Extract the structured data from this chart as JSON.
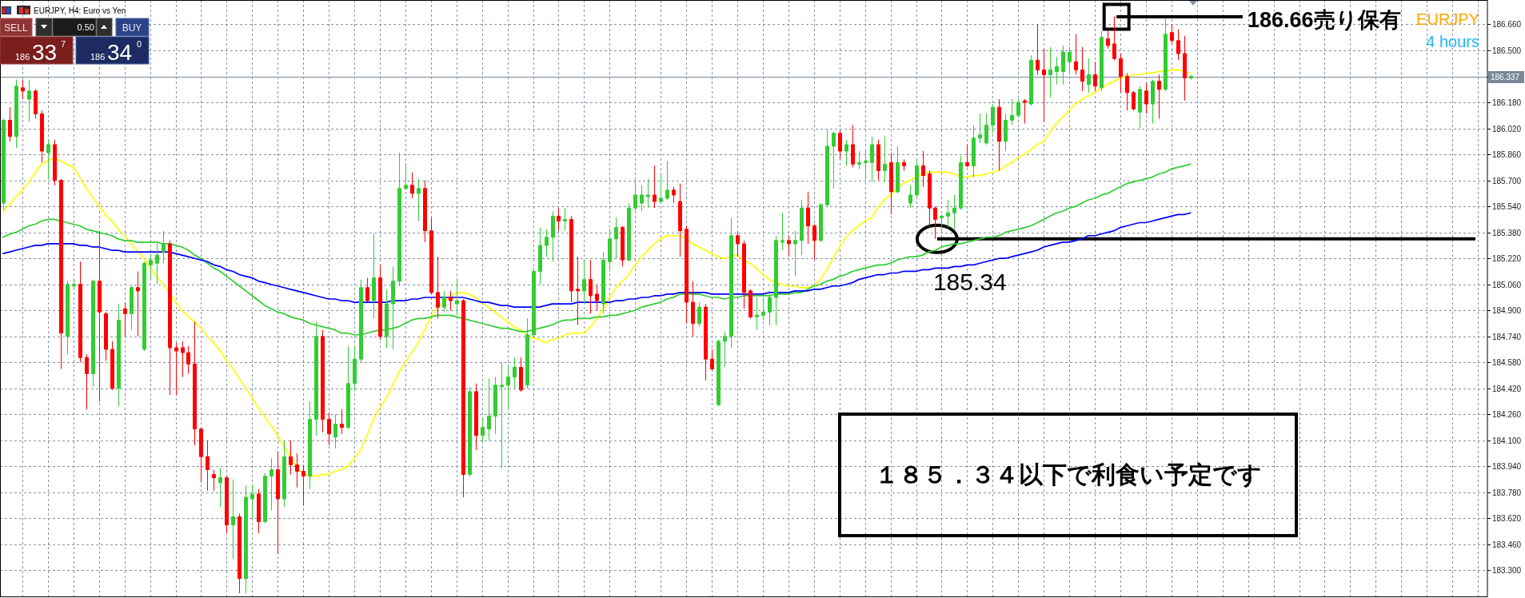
{
  "chart_data": {
    "type": "candlestick",
    "categories": [
      null,
      null,
      null,
      null,
      null,
      null,
      null,
      null,
      null,
      null,
      null,
      null,
      null,
      null,
      null,
      null,
      null,
      null,
      null,
      null,
      null,
      null,
      null,
      null,
      null,
      null,
      null,
      null,
      null,
      null,
      null,
      null,
      null,
      null,
      null,
      null,
      null,
      null,
      null,
      null,
      null,
      null,
      null,
      null,
      null,
      null,
      null,
      null,
      null,
      null,
      null,
      null,
      null,
      null,
      null,
      null,
      null,
      null,
      null,
      null,
      null,
      null,
      null,
      null,
      null,
      null,
      null,
      null,
      null,
      null,
      null,
      null,
      null,
      null,
      null,
      null,
      null,
      null,
      null,
      null,
      null,
      null,
      null,
      null,
      null,
      null,
      null,
      null,
      null,
      null,
      null,
      null,
      null,
      null,
      null,
      null,
      null,
      null,
      null,
      null,
      null,
      null,
      null,
      null,
      null,
      null,
      null,
      null,
      null,
      null,
      null,
      null,
      null,
      null,
      null,
      null,
      null,
      null,
      null,
      null,
      null,
      null,
      null,
      null,
      null,
      null,
      null,
      null,
      null,
      null,
      null,
      null,
      null,
      null,
      null,
      null,
      null,
      null,
      null,
      null,
      null,
      null,
      null,
      null,
      null,
      null,
      null,
      null,
      null,
      null,
      null,
      null,
      null,
      null,
      null,
      null,
      null,
      null,
      null,
      null,
      null,
      null,
      null,
      null,
      null,
      null,
      null,
      null,
      null,
      null,
      null,
      null,
      null,
      null,
      null,
      null,
      null,
      null,
      null,
      null,
      null,
      null,
      null,
      null,
      null,
      null,
      null,
      null,
      null,
      null,
      null,
      null,
      null,
      null,
      null,
      null,
      null,
      null,
      null,
      null,
      null,
      null,
      null,
      null,
      null,
      null,
      null,
      null,
      null,
      null,
      null,
      null,
      null,
      null,
      null,
      null,
      null,
      null,
      null,
      null,
      null,
      null,
      null,
      null,
      null,
      null,
      null,
      null,
      null,
      null,
      null,
      null,
      null
    ],
    "ohlc": [
      [
        185.56,
        186.08,
        185.52,
        186.07
      ],
      [
        186.07,
        186.15,
        185.94,
        185.97
      ],
      [
        185.97,
        186.32,
        185.9,
        186.28
      ],
      [
        186.27,
        186.32,
        186.2,
        186.25
      ],
      [
        186.2,
        186.32,
        186.06,
        186.25
      ],
      [
        186.25,
        186.26,
        186.08,
        186.11
      ],
      [
        186.11,
        186.13,
        185.81,
        185.88
      ],
      [
        185.87,
        185.95,
        185.71,
        185.92
      ],
      [
        185.92,
        185.95,
        185.67,
        185.7
      ],
      [
        185.7,
        185.71,
        184.54,
        184.76
      ],
      [
        184.74,
        185.08,
        184.63,
        185.06
      ],
      [
        185.05,
        185.09,
        185.03,
        185.06
      ],
      [
        185.06,
        185.2,
        184.58,
        184.61
      ],
      [
        184.61,
        184.63,
        184.29,
        184.51
      ],
      [
        184.51,
        185.09,
        184.43,
        185.08
      ],
      [
        185.08,
        185.38,
        184.34,
        184.89
      ],
      [
        184.88,
        184.89,
        184.59,
        184.66
      ],
      [
        184.66,
        184.71,
        184.41,
        184.42
      ],
      [
        184.42,
        184.94,
        184.31,
        184.84
      ],
      [
        184.91,
        184.95,
        184.74,
        184.88
      ],
      [
        184.88,
        185.05,
        184.78,
        185.04
      ],
      [
        185.04,
        185.14,
        184.74,
        185.02
      ],
      [
        184.66,
        185.2,
        184.65,
        185.19
      ],
      [
        185.18,
        185.25,
        185.09,
        185.21
      ],
      [
        185.19,
        185.31,
        185.06,
        185.24
      ],
      [
        185.26,
        185.39,
        185.19,
        185.31
      ],
      [
        185.31,
        185.33,
        184.38,
        184.67
      ],
      [
        184.67,
        184.7,
        184.38,
        184.65
      ],
      [
        184.67,
        184.71,
        184.49,
        184.64
      ],
      [
        184.64,
        184.68,
        184.51,
        184.57
      ],
      [
        184.57,
        184.83,
        184.07,
        184.17
      ],
      [
        184.17,
        184.18,
        183.84,
        184.0
      ],
      [
        184.0,
        184.1,
        183.79,
        183.92
      ],
      [
        183.89,
        183.92,
        183.79,
        183.87
      ],
      [
        183.84,
        183.93,
        183.69,
        183.87
      ],
      [
        183.87,
        183.88,
        183.53,
        183.58
      ],
      [
        183.58,
        183.86,
        183.37,
        183.63
      ],
      [
        183.63,
        183.65,
        183.16,
        183.25
      ],
      [
        183.25,
        183.82,
        183.16,
        183.75
      ],
      [
        183.74,
        183.83,
        183.62,
        183.77
      ],
      [
        183.77,
        183.8,
        183.53,
        183.6
      ],
      [
        183.6,
        183.9,
        183.59,
        183.88
      ],
      [
        183.88,
        183.99,
        183.67,
        183.92
      ],
      [
        183.92,
        184.03,
        183.4,
        183.74
      ],
      [
        183.74,
        184.1,
        183.69,
        184.0
      ],
      [
        184.0,
        184.1,
        183.89,
        183.95
      ],
      [
        183.95,
        184.02,
        183.81,
        183.91
      ],
      [
        183.91,
        183.95,
        183.7,
        183.88
      ],
      [
        183.88,
        184.34,
        183.8,
        184.23
      ],
      [
        184.23,
        184.83,
        184.13,
        184.74
      ],
      [
        184.74,
        184.78,
        184.15,
        184.23
      ],
      [
        184.23,
        184.27,
        184.07,
        184.14
      ],
      [
        184.12,
        184.26,
        184.05,
        184.2
      ],
      [
        184.2,
        184.29,
        184.14,
        184.18
      ],
      [
        184.18,
        184.68,
        184.17,
        184.45
      ],
      [
        184.45,
        184.68,
        184.41,
        184.6
      ],
      [
        184.6,
        185.09,
        184.58,
        185.04
      ],
      [
        185.04,
        185.1,
        184.95,
        184.96
      ],
      [
        184.96,
        185.37,
        184.85,
        185.1
      ],
      [
        185.1,
        185.18,
        184.72,
        184.74
      ],
      [
        184.74,
        185.03,
        184.67,
        184.94
      ],
      [
        184.94,
        185.17,
        184.66,
        185.08
      ],
      [
        185.08,
        185.87,
        185.05,
        185.65
      ],
      [
        185.65,
        185.8,
        185.64,
        185.67
      ],
      [
        185.67,
        185.75,
        185.59,
        185.62
      ],
      [
        185.62,
        185.71,
        185.45,
        185.65
      ],
      [
        185.65,
        185.7,
        185.32,
        185.39
      ],
      [
        185.39,
        185.47,
        185.0,
        185.01
      ],
      [
        185.01,
        185.23,
        184.85,
        184.92
      ],
      [
        184.92,
        185.02,
        184.89,
        184.98
      ],
      [
        184.98,
        185.02,
        184.9,
        184.96
      ],
      [
        184.94,
        185.09,
        184.87,
        184.96
      ],
      [
        184.96,
        184.97,
        183.75,
        183.89
      ],
      [
        183.89,
        184.43,
        183.88,
        184.4
      ],
      [
        184.4,
        184.45,
        184.04,
        184.13
      ],
      [
        184.13,
        184.24,
        184.09,
        184.18
      ],
      [
        184.17,
        184.48,
        184.1,
        184.25
      ],
      [
        184.25,
        184.49,
        184.14,
        184.44
      ],
      [
        184.43,
        184.58,
        183.93,
        184.44
      ],
      [
        184.44,
        184.56,
        184.29,
        184.49
      ],
      [
        184.49,
        184.61,
        184.42,
        184.55
      ],
      [
        184.55,
        184.61,
        184.4,
        184.41
      ],
      [
        184.44,
        184.85,
        184.42,
        184.75
      ],
      [
        184.75,
        185.16,
        184.74,
        185.14
      ],
      [
        185.14,
        185.41,
        185.06,
        185.3
      ],
      [
        185.3,
        185.4,
        185.23,
        185.35
      ],
      [
        185.35,
        185.51,
        185.2,
        185.48
      ],
      [
        185.48,
        185.53,
        185.39,
        185.45
      ],
      [
        185.45,
        185.53,
        185.39,
        185.46
      ],
      [
        185.46,
        185.48,
        184.95,
        185.02
      ],
      [
        185.03,
        185.23,
        184.81,
        185.02
      ],
      [
        185.02,
        185.21,
        184.94,
        185.09
      ],
      [
        185.09,
        185.21,
        184.88,
        184.99
      ],
      [
        185.0,
        185.06,
        184.9,
        184.96
      ],
      [
        184.94,
        185.26,
        184.88,
        185.21
      ],
      [
        185.2,
        185.4,
        185.14,
        185.34
      ],
      [
        185.34,
        185.47,
        185.22,
        185.41
      ],
      [
        185.41,
        185.42,
        185.17,
        185.21
      ],
      [
        185.21,
        185.56,
        185.2,
        185.53
      ],
      [
        185.53,
        185.71,
        185.51,
        185.61
      ],
      [
        185.56,
        185.67,
        185.51,
        185.61
      ],
      [
        185.6,
        185.71,
        185.53,
        185.61
      ],
      [
        185.61,
        185.79,
        185.53,
        185.57
      ],
      [
        185.57,
        185.74,
        185.56,
        185.59
      ],
      [
        185.59,
        185.82,
        185.58,
        185.64
      ],
      [
        185.64,
        185.66,
        185.56,
        185.61
      ],
      [
        185.57,
        185.68,
        185.23,
        185.39
      ],
      [
        185.4,
        185.42,
        184.82,
        184.95
      ],
      [
        184.95,
        185.08,
        184.74,
        184.82
      ],
      [
        184.82,
        184.95,
        184.8,
        184.92
      ],
      [
        184.92,
        184.94,
        184.47,
        184.6
      ],
      [
        184.6,
        184.66,
        184.53,
        184.54
      ],
      [
        184.32,
        184.72,
        184.31,
        184.71
      ],
      [
        184.71,
        184.77,
        184.55,
        184.74
      ],
      [
        184.74,
        185.47,
        184.67,
        185.36
      ],
      [
        185.36,
        185.38,
        185.23,
        185.31
      ],
      [
        185.31,
        185.33,
        184.91,
        185.01
      ],
      [
        185.02,
        185.03,
        184.85,
        184.86
      ],
      [
        184.86,
        184.98,
        184.78,
        184.87
      ],
      [
        184.87,
        184.98,
        184.84,
        184.89
      ],
      [
        184.89,
        185.02,
        184.81,
        184.98
      ],
      [
        184.98,
        185.36,
        184.81,
        185.33
      ],
      [
        185.32,
        185.5,
        185.27,
        185.33
      ],
      [
        185.33,
        185.36,
        185.23,
        185.31
      ],
      [
        185.31,
        185.39,
        185.11,
        185.33
      ],
      [
        185.33,
        185.58,
        185.24,
        185.53
      ],
      [
        185.53,
        185.63,
        185.31,
        185.42
      ],
      [
        185.42,
        185.43,
        185.21,
        185.33
      ],
      [
        185.33,
        185.56,
        185.32,
        185.55
      ],
      [
        185.55,
        186.01,
        185.54,
        185.91
      ],
      [
        185.91,
        186.0,
        185.65,
        185.99
      ],
      [
        185.99,
        186.01,
        185.83,
        185.88
      ],
      [
        185.88,
        185.95,
        185.79,
        185.92
      ],
      [
        185.92,
        186.04,
        185.78,
        185.8
      ],
      [
        185.8,
        185.88,
        185.77,
        185.81
      ],
      [
        185.81,
        185.88,
        185.71,
        185.82
      ],
      [
        185.81,
        185.97,
        185.69,
        185.92
      ],
      [
        185.92,
        185.95,
        185.7,
        185.76
      ],
      [
        185.76,
        185.97,
        185.69,
        185.8
      ],
      [
        185.81,
        185.87,
        185.49,
        185.63
      ],
      [
        185.63,
        185.91,
        185.62,
        185.81
      ],
      [
        185.81,
        185.83,
        185.76,
        185.79
      ],
      [
        185.56,
        185.67,
        185.53,
        185.61
      ],
      [
        185.61,
        185.83,
        185.6,
        185.79
      ],
      [
        185.79,
        185.88,
        185.66,
        185.73
      ],
      [
        185.74,
        185.76,
        185.41,
        185.53
      ],
      [
        185.53,
        185.54,
        185.34,
        185.46
      ],
      [
        185.47,
        185.49,
        185.38,
        185.48
      ],
      [
        185.48,
        185.58,
        185.41,
        185.5
      ],
      [
        185.5,
        185.61,
        185.4,
        185.53
      ],
      [
        185.53,
        185.85,
        185.52,
        185.81
      ],
      [
        185.81,
        185.92,
        185.78,
        185.79
      ],
      [
        185.79,
        186.04,
        185.72,
        185.96
      ],
      [
        185.96,
        186.11,
        185.93,
        185.98
      ],
      [
        185.93,
        186.11,
        185.92,
        186.04
      ],
      [
        186.04,
        186.17,
        185.99,
        186.15
      ],
      [
        186.15,
        186.2,
        185.76,
        185.94
      ],
      [
        185.94,
        186.11,
        185.88,
        186.07
      ],
      [
        186.07,
        186.2,
        186.04,
        186.1
      ],
      [
        186.1,
        186.2,
        186.09,
        186.18
      ],
      [
        186.19,
        186.2,
        186.05,
        186.18
      ],
      [
        186.17,
        186.47,
        186.16,
        186.44
      ],
      [
        186.44,
        186.66,
        186.35,
        186.38
      ],
      [
        186.38,
        186.51,
        186.06,
        186.35
      ],
      [
        186.35,
        186.52,
        186.21,
        186.38
      ],
      [
        186.37,
        186.46,
        186.29,
        186.4
      ],
      [
        186.37,
        186.53,
        186.29,
        186.49
      ],
      [
        186.43,
        186.52,
        186.36,
        186.49
      ],
      [
        186.43,
        186.6,
        186.35,
        186.38
      ],
      [
        186.38,
        186.52,
        186.25,
        186.31
      ],
      [
        186.29,
        186.45,
        186.24,
        186.35
      ],
      [
        186.35,
        186.43,
        186.25,
        186.28
      ],
      [
        186.27,
        186.62,
        186.25,
        186.58
      ],
      [
        186.57,
        186.62,
        186.51,
        186.53
      ],
      [
        186.54,
        186.71,
        186.44,
        186.45
      ],
      [
        186.45,
        186.48,
        186.24,
        186.34
      ],
      [
        186.34,
        186.36,
        186.13,
        186.24
      ],
      [
        186.24,
        186.25,
        186.13,
        186.14
      ],
      [
        186.12,
        186.28,
        186.02,
        186.26
      ],
      [
        186.25,
        186.3,
        186.11,
        186.17
      ],
      [
        186.17,
        186.32,
        186.05,
        186.31
      ],
      [
        186.31,
        186.35,
        186.08,
        186.26
      ],
      [
        186.26,
        186.7,
        186.25,
        186.6
      ],
      [
        186.61,
        186.66,
        186.54,
        186.56
      ],
      [
        186.56,
        186.63,
        186.44,
        186.48
      ],
      [
        186.48,
        186.59,
        186.19,
        186.33
      ],
      [
        186.33,
        186.35,
        186.32,
        186.34
      ],
      null,
      null,
      null,
      null,
      null,
      null,
      null,
      null,
      null,
      null,
      null,
      null,
      null,
      null,
      null,
      null,
      null,
      null,
      null,
      null,
      null,
      null,
      null,
      null,
      null,
      null,
      null,
      null,
      null,
      null,
      null,
      null,
      null,
      null,
      null,
      null,
      null,
      null,
      null,
      null,
      null,
      null,
      null,
      null,
      null,
      null
    ],
    "colors": [
      "#32cd32",
      "#ff0000",
      "#32cd32",
      "#ff0000",
      "#32cd32",
      "#ff0000",
      "#ff0000",
      "#32cd32",
      "#ff0000",
      "#ff0000",
      "#32cd32",
      "#32cd32",
      "#ff0000",
      "#ff0000",
      "#32cd32",
      "#ff0000",
      "#ff0000",
      "#ff0000",
      "#32cd32",
      "#ff0000",
      "#32cd32",
      "#ff0000",
      "#32cd32",
      "#32cd32",
      "#32cd32",
      "#32cd32",
      "#ff0000",
      "#ff0000",
      "#ff0000",
      "#ff0000",
      "#ff0000",
      "#ff0000",
      "#ff0000",
      "#ff0000",
      "#32cd32",
      "#ff0000",
      "#32cd32",
      "#ff0000",
      "#32cd32",
      "#32cd32",
      "#ff0000",
      "#32cd32",
      "#32cd32",
      "#ff0000",
      "#32cd32",
      "#ff0000",
      "#ff0000",
      "#ff0000",
      "#32cd32",
      "#32cd32",
      "#ff0000",
      "#ff0000",
      "#32cd32",
      "#ff0000",
      "#32cd32",
      "#32cd32",
      "#32cd32",
      "#ff0000",
      "#32cd32",
      "#ff0000",
      "#32cd32",
      "#32cd32",
      "#32cd32",
      "#32cd32",
      "#ff0000",
      "#32cd32",
      "#ff0000",
      "#ff0000",
      "#ff0000",
      "#32cd32",
      "#ff0000",
      "#32cd32",
      "#ff0000",
      "#32cd32",
      "#ff0000",
      "#32cd32",
      "#32cd32",
      "#32cd32",
      "#32cd32",
      "#32cd32",
      "#32cd32",
      "#ff0000",
      "#32cd32",
      "#32cd32",
      "#32cd32",
      "#32cd32",
      "#32cd32",
      "#ff0000",
      "#32cd32",
      "#ff0000",
      "#ff0000",
      "#32cd32",
      "#ff0000",
      "#ff0000",
      "#32cd32",
      "#32cd32",
      "#32cd32",
      "#ff0000",
      "#32cd32",
      "#32cd32",
      "#32cd32",
      "#32cd32",
      "#ff0000",
      "#32cd32",
      "#32cd32",
      "#ff0000",
      "#ff0000",
      "#ff0000",
      "#ff0000",
      "#32cd32",
      "#ff0000",
      "#ff0000",
      "#32cd32",
      "#32cd32",
      "#32cd32",
      "#ff0000",
      "#ff0000",
      "#ff0000",
      "#32cd32",
      "#32cd32",
      "#32cd32",
      "#32cd32",
      "#32cd32",
      "#ff0000",
      "#32cd32",
      "#32cd32",
      "#ff0000",
      "#ff0000",
      "#32cd32",
      "#32cd32",
      "#32cd32",
      "#ff0000",
      "#32cd32",
      "#ff0000",
      "#32cd32",
      "#32cd32",
      "#32cd32",
      "#ff0000",
      "#32cd32",
      "#ff0000",
      "#32cd32",
      "#ff0000",
      "#32cd32",
      "#32cd32",
      "#ff0000",
      "#ff0000",
      "#ff0000",
      "#32cd32",
      "#32cd32",
      "#32cd32",
      "#32cd32",
      "#ff0000",
      "#32cd32",
      "#32cd32",
      "#32cd32",
      "#32cd32",
      "#ff0000",
      "#32cd32",
      "#32cd32",
      "#32cd32",
      "#ff0000",
      "#32cd32",
      "#ff0000",
      "#ff0000",
      "#32cd32",
      "#32cd32",
      "#32cd32",
      "#32cd32",
      "#ff0000",
      "#ff0000",
      "#32cd32",
      "#ff0000",
      "#32cd32",
      "#ff0000",
      "#ff0000",
      "#ff0000",
      "#ff0000",
      "#ff0000",
      "#32cd32",
      "#ff0000",
      "#32cd32",
      "#ff0000",
      "#32cd32",
      "#ff0000",
      "#ff0000",
      "#ff0000",
      "#32cd32",
      null,
      null,
      null,
      null,
      null,
      null,
      null,
      null,
      null,
      null,
      null,
      null,
      null,
      null,
      null,
      null,
      null,
      null,
      null,
      null,
      null,
      null,
      null,
      null,
      null,
      null,
      null,
      null,
      null,
      null,
      null,
      null,
      null,
      null,
      null,
      null,
      null,
      null,
      null,
      null,
      null,
      null,
      null,
      null,
      null,
      null
    ],
    "series": [
      {
        "type": "line",
        "color": "#ffff00",
        "values": [
          185.51,
          185.55,
          185.6,
          185.64,
          185.69,
          185.75,
          185.8,
          185.82,
          185.84,
          185.82,
          185.8,
          185.78,
          185.72,
          185.65,
          185.6,
          185.54,
          185.49,
          185.45,
          185.4,
          185.36,
          185.31,
          185.27,
          185.22,
          185.17,
          185.11,
          185.06,
          185.01,
          184.95,
          184.9,
          184.86,
          184.83,
          184.79,
          184.74,
          184.7,
          184.65,
          184.59,
          184.54,
          184.48,
          184.42,
          184.36,
          184.3,
          184.24,
          184.19,
          184.13,
          184.06,
          184.0,
          183.93,
          183.9,
          183.88,
          183.88,
          183.89,
          183.89,
          183.91,
          183.92,
          183.94,
          183.99,
          184.04,
          184.13,
          184.23,
          184.3,
          184.36,
          184.44,
          184.52,
          184.58,
          184.64,
          184.7,
          184.78,
          184.86,
          184.92,
          184.95,
          184.98,
          185.01,
          185.01,
          185.0,
          184.98,
          184.95,
          184.92,
          184.89,
          184.86,
          184.83,
          184.8,
          184.78,
          184.75,
          184.73,
          184.72,
          184.7,
          184.72,
          184.73,
          184.75,
          184.76,
          184.76,
          184.76,
          184.8,
          184.85,
          184.91,
          184.98,
          185.04,
          185.08,
          185.12,
          185.18,
          185.23,
          185.27,
          185.31,
          185.34,
          185.36,
          185.36,
          185.36,
          185.34,
          185.31,
          185.29,
          185.27,
          185.25,
          185.23,
          185.22,
          185.23,
          185.24,
          185.21,
          185.19,
          185.16,
          185.12,
          185.09,
          185.07,
          185.06,
          185.05,
          185.05,
          185.04,
          185.04,
          185.05,
          185.09,
          185.15,
          185.22,
          185.29,
          185.35,
          185.39,
          185.42,
          185.45,
          185.47,
          185.53,
          185.58,
          185.61,
          185.65,
          185.68,
          185.7,
          185.72,
          185.74,
          185.75,
          185.75,
          185.75,
          185.75,
          185.74,
          185.72,
          185.72,
          185.73,
          185.73,
          185.74,
          185.75,
          185.76,
          185.79,
          185.81,
          185.84,
          185.86,
          185.89,
          185.92,
          185.94,
          186.0,
          186.05,
          186.09,
          186.13,
          186.17,
          186.2,
          186.22,
          186.24,
          186.27,
          186.29,
          186.31,
          186.33,
          186.34,
          186.35,
          186.35,
          186.36,
          186.36,
          186.37,
          186.37,
          186.38,
          186.38,
          186.37,
          186.36,
          null,
          null,
          null,
          null,
          null,
          null,
          null,
          null,
          null,
          null,
          null,
          null,
          null,
          null,
          null,
          null,
          null,
          null,
          null,
          null,
          null,
          null,
          null,
          null,
          null,
          null,
          null,
          null,
          null,
          null,
          null,
          null,
          null,
          null,
          null,
          null,
          null,
          null,
          null,
          null,
          null,
          null,
          null,
          null,
          null,
          null
        ]
      },
      {
        "type": "line",
        "color": "#32cd32",
        "values": [
          185.35,
          185.37,
          185.38,
          185.4,
          185.42,
          185.43,
          185.45,
          185.46,
          185.46,
          185.45,
          185.44,
          185.43,
          185.42,
          185.4,
          185.39,
          185.38,
          185.37,
          185.36,
          185.34,
          185.33,
          185.33,
          185.32,
          185.32,
          185.32,
          185.32,
          185.31,
          185.31,
          185.3,
          185.29,
          185.27,
          185.24,
          185.22,
          185.19,
          185.16,
          185.14,
          185.11,
          185.08,
          185.05,
          185.02,
          184.99,
          184.96,
          184.93,
          184.91,
          184.89,
          184.88,
          184.86,
          184.85,
          184.84,
          184.82,
          184.81,
          184.8,
          184.79,
          184.78,
          184.76,
          184.76,
          184.75,
          184.75,
          184.76,
          184.77,
          184.78,
          184.78,
          184.79,
          184.8,
          184.82,
          184.84,
          184.85,
          184.85,
          184.86,
          184.87,
          184.87,
          184.87,
          184.86,
          184.85,
          184.84,
          184.83,
          184.82,
          184.81,
          184.8,
          184.79,
          184.79,
          184.78,
          184.77,
          184.77,
          184.78,
          184.79,
          184.8,
          184.81,
          184.83,
          184.84,
          184.84,
          184.85,
          184.85,
          184.85,
          184.86,
          184.86,
          184.87,
          184.87,
          184.88,
          184.89,
          184.9,
          184.92,
          184.93,
          184.94,
          184.95,
          184.97,
          184.98,
          185.0,
          185.0,
          185.0,
          185.0,
          184.99,
          184.98,
          184.98,
          184.97,
          184.98,
          184.98,
          184.99,
          184.99,
          184.99,
          184.99,
          184.99,
          185.0,
          185.0,
          185.0,
          185.01,
          185.01,
          185.03,
          185.05,
          185.06,
          185.08,
          185.09,
          185.11,
          185.12,
          185.14,
          185.15,
          185.16,
          185.17,
          185.18,
          185.18,
          185.19,
          185.21,
          185.22,
          185.23,
          185.23,
          185.24,
          185.26,
          185.27,
          185.29,
          185.3,
          185.31,
          185.31,
          185.32,
          185.33,
          185.34,
          185.35,
          185.35,
          185.36,
          185.38,
          185.39,
          185.4,
          185.41,
          185.42,
          185.44,
          185.46,
          185.48,
          185.5,
          185.51,
          185.53,
          185.54,
          185.56,
          185.58,
          185.59,
          185.61,
          185.62,
          185.64,
          185.66,
          185.68,
          185.69,
          185.7,
          185.71,
          185.72,
          185.74,
          185.75,
          185.77,
          185.78,
          185.79,
          185.8,
          null,
          null,
          null,
          null,
          null,
          null,
          null,
          null,
          null,
          null,
          null,
          null,
          null,
          null,
          null,
          null,
          null,
          null,
          null,
          null,
          null,
          null,
          null,
          null,
          null,
          null,
          null,
          null,
          null,
          null,
          null,
          null,
          null,
          null,
          null,
          null,
          null,
          null,
          null,
          null,
          null,
          null,
          null,
          null,
          null,
          null
        ]
      },
      {
        "type": "line",
        "color": "#0000ff",
        "values": [
          185.25,
          185.26,
          185.27,
          185.28,
          185.29,
          185.3,
          185.3,
          185.31,
          185.31,
          185.31,
          185.31,
          185.31,
          185.3,
          185.3,
          185.29,
          185.29,
          185.28,
          185.27,
          185.27,
          185.26,
          185.26,
          185.26,
          185.26,
          185.26,
          185.26,
          185.26,
          185.26,
          185.25,
          185.24,
          185.23,
          185.22,
          185.21,
          185.2,
          185.18,
          185.17,
          185.15,
          185.14,
          185.12,
          185.11,
          185.1,
          185.08,
          185.07,
          185.06,
          185.05,
          185.04,
          185.03,
          185.02,
          185.01,
          185.0,
          184.99,
          184.98,
          184.97,
          184.97,
          184.96,
          184.96,
          184.95,
          184.95,
          184.95,
          184.95,
          184.95,
          184.95,
          184.96,
          184.96,
          184.96,
          184.97,
          184.97,
          184.98,
          184.98,
          184.98,
          184.98,
          184.98,
          184.98,
          184.98,
          184.97,
          184.96,
          184.95,
          184.95,
          184.94,
          184.93,
          184.93,
          184.92,
          184.92,
          184.92,
          184.92,
          184.92,
          184.93,
          184.94,
          184.94,
          184.94,
          184.94,
          184.95,
          184.95,
          184.95,
          184.95,
          184.95,
          184.95,
          184.96,
          184.96,
          184.97,
          184.97,
          184.98,
          184.98,
          184.99,
          184.99,
          185.0,
          185.0,
          185.01,
          185.01,
          185.01,
          185.01,
          185.01,
          185.0,
          185.0,
          185.0,
          185.0,
          185.0,
          185.0,
          185.0,
          185.0,
          185.0,
          185.01,
          185.01,
          185.01,
          185.01,
          185.02,
          185.02,
          185.02,
          185.03,
          185.03,
          185.04,
          185.05,
          185.05,
          185.06,
          185.07,
          185.09,
          185.1,
          185.11,
          185.12,
          185.12,
          185.13,
          185.13,
          185.14,
          185.14,
          185.14,
          185.15,
          185.15,
          185.16,
          185.16,
          185.16,
          185.17,
          185.17,
          185.18,
          185.18,
          185.19,
          185.2,
          185.21,
          185.22,
          185.22,
          185.23,
          185.24,
          185.25,
          185.26,
          185.27,
          185.29,
          185.3,
          185.31,
          185.32,
          185.32,
          185.33,
          185.34,
          185.36,
          185.36,
          185.37,
          185.38,
          185.39,
          185.41,
          185.42,
          185.43,
          185.44,
          185.44,
          185.45,
          185.46,
          185.47,
          185.48,
          185.49,
          185.49,
          185.5,
          null,
          null,
          null,
          null,
          null,
          null,
          null,
          null,
          null,
          null,
          null,
          null,
          null,
          null,
          null,
          null,
          null,
          null,
          null,
          null,
          null,
          null,
          null,
          null,
          null,
          null,
          null,
          null,
          null,
          null,
          null,
          null,
          null,
          null,
          null,
          null,
          null,
          null,
          null,
          null,
          null,
          null,
          null,
          null,
          null,
          null
        ]
      }
    ],
    "ylim": [
      183.14,
      186.81
    ],
    "yticks": [
      {
        "value": 183.3,
        "label": "183.300"
      },
      {
        "value": 183.46,
        "label": "183.460"
      },
      {
        "value": 183.62,
        "label": "183.620"
      },
      {
        "value": 183.78,
        "label": "183.780"
      },
      {
        "value": 183.94,
        "label": "183.940"
      },
      {
        "value": 184.1,
        "label": "184.100"
      },
      {
        "value": 184.26,
        "label": "184.260"
      },
      {
        "value": 184.42,
        "label": "184.420"
      },
      {
        "value": 184.58,
        "label": "184.580"
      },
      {
        "value": 184.74,
        "label": "184.740"
      },
      {
        "value": 184.9,
        "label": "184.900"
      },
      {
        "value": 185.06,
        "label": "185.060"
      },
      {
        "value": 185.22,
        "label": "185.220"
      },
      {
        "value": 185.38,
        "label": "185.380"
      },
      {
        "value": 185.54,
        "label": "185.540"
      },
      {
        "value": 185.7,
        "label": "185.700"
      },
      {
        "value": 185.86,
        "label": "185.860"
      },
      {
        "value": 186.02,
        "label": "186.020"
      },
      {
        "value": 186.18,
        "label": "186.180"
      },
      {
        "value": 186.34,
        "label": null
      },
      {
        "value": 186.5,
        "label": "186.500"
      },
      {
        "value": 186.66,
        "label": "186.660"
      }
    ],
    "grid": true,
    "tick_labels": "y",
    "ref_lines": [
      {
        "axis": "y",
        "value": 186.337,
        "label": "186.337",
        "color": "#778899"
      }
    ],
    "annotations": [
      "EURJPY, H4: Euro vs Yen",
      "SELL",
      "0.50",
      "BUY",
      "186",
      "33",
      "7",
      "186",
      "34",
      "0",
      "EURJPY",
      "4 hours",
      "186.66売り保有",
      {
        "text": "185.34",
        "y": 185.34
      },
      "１８５．３４以下で利食い予定です"
    ]
  }
}
